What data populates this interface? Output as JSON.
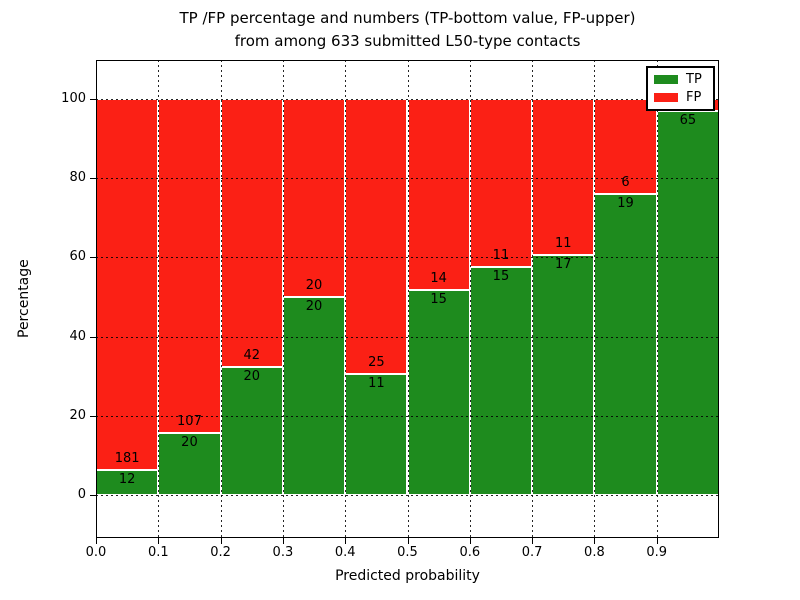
{
  "chart_data": {
    "type": "bar",
    "variant": "stacked-percentage-histogram",
    "title_line1": "TP /FP percentage and numbers (TP-bottom value, FP-upper)",
    "title_line2": "from among 633 submitted L50-type contacts",
    "total_contacts": 633,
    "xlabel": "Predicted probability",
    "ylabel": "Percentage",
    "x_tick_labels": [
      "0.0",
      "0.1",
      "0.2",
      "0.3",
      "0.4",
      "0.5",
      "0.6",
      "0.7",
      "0.8",
      "0.9"
    ],
    "y_tick_values": [
      0,
      20,
      40,
      60,
      80,
      100
    ],
    "xlim": [
      0.0,
      1.0
    ],
    "ylim": [
      -11,
      110
    ],
    "bin_width": 0.1,
    "grid": "dotted",
    "colors": {
      "tp": "#1e8b1e",
      "fp": "#fb2015",
      "text": "#000000",
      "background": "#ffffff"
    },
    "legend": {
      "position": "upper right",
      "items": [
        {
          "label": "TP",
          "color": "#1e8b1e"
        },
        {
          "label": "FP",
          "color": "#fb2015"
        }
      ]
    },
    "bars": [
      {
        "bin_start": "0.0",
        "tp": 12,
        "fp": 181,
        "fp_label_visible": true
      },
      {
        "bin_start": "0.1",
        "tp": 20,
        "fp": 107,
        "fp_label_visible": true
      },
      {
        "bin_start": "0.2",
        "tp": 20,
        "fp": 42,
        "fp_label_visible": true
      },
      {
        "bin_start": "0.3",
        "tp": 20,
        "fp": 20,
        "fp_label_visible": true
      },
      {
        "bin_start": "0.4",
        "tp": 11,
        "fp": 25,
        "fp_label_visible": true
      },
      {
        "bin_start": "0.5",
        "tp": 15,
        "fp": 14,
        "fp_label_visible": true
      },
      {
        "bin_start": "0.6",
        "tp": 15,
        "fp": 11,
        "fp_label_visible": true
      },
      {
        "bin_start": "0.7",
        "tp": 17,
        "fp": 11,
        "fp_label_visible": true
      },
      {
        "bin_start": "0.8",
        "tp": 19,
        "fp": 6,
        "fp_label_visible": true
      },
      {
        "bin_start": "0.9",
        "tp": 65,
        "fp": 2,
        "fp_label_visible": false
      }
    ]
  }
}
